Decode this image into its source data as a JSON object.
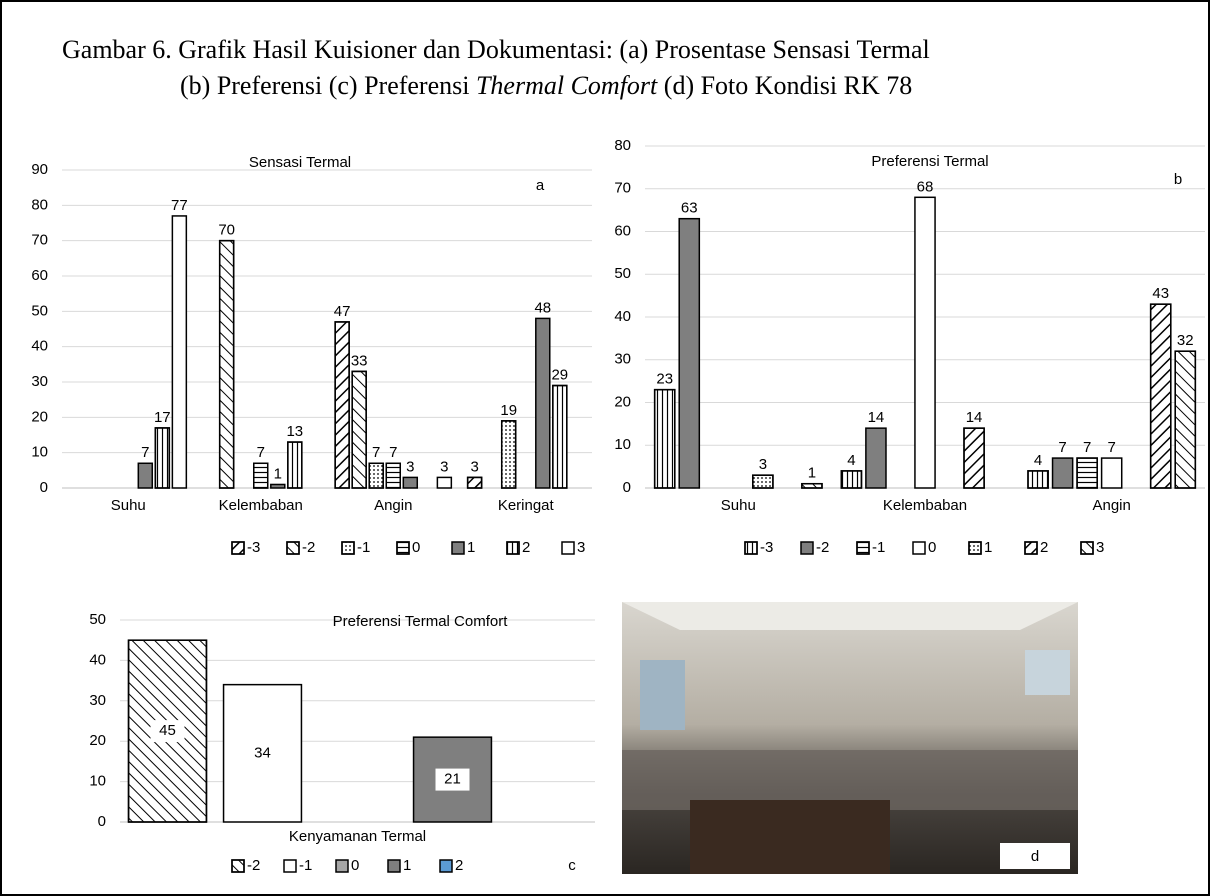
{
  "caption": {
    "line1": "Gambar 6. Grafik Hasil Kuisioner dan Dokumentasi: (a) Prosentase Sensasi Termal",
    "line2": [
      "(b) Preferensi (c) Preferensi ",
      "Thermal Comfort",
      " (d) Foto Kondisi RK 78"
    ]
  },
  "chart_data": [
    {
      "type": "bar",
      "title": "Sensasi Termal",
      "label": "a",
      "categories": [
        "Suhu",
        "Kelembaban",
        "Angin",
        "Keringat"
      ],
      "ylim": [
        0,
        90
      ],
      "yticks": [
        0,
        10,
        20,
        30,
        40,
        50,
        60,
        70,
        80,
        90
      ],
      "grid": true,
      "value_label_position": "above",
      "series": [
        {
          "name": "-3",
          "color": "#ffffff",
          "pattern": "diag-up",
          "values": [
            null,
            null,
            47,
            3
          ]
        },
        {
          "name": "-2",
          "color": "#ffffff",
          "pattern": "diag-down",
          "values": [
            null,
            70,
            33,
            null
          ]
        },
        {
          "name": "-1",
          "color": "#ffffff",
          "pattern": "dots",
          "values": [
            null,
            null,
            7,
            19
          ]
        },
        {
          "name": "0",
          "color": "#ffffff",
          "pattern": "hlines",
          "values": [
            null,
            7,
            7,
            null
          ]
        },
        {
          "name": "1",
          "color": "#7f7f7f",
          "pattern": null,
          "values": [
            7,
            1,
            3,
            48
          ]
        },
        {
          "name": "2",
          "color": "#ffffff",
          "pattern": "vlines",
          "values": [
            17,
            13,
            null,
            29
          ]
        },
        {
          "name": "3",
          "color": "#ffffff",
          "pattern": null,
          "values": [
            77,
            null,
            3,
            null
          ]
        }
      ]
    },
    {
      "type": "bar",
      "title": "Preferensi Termal",
      "label": "b",
      "categories": [
        "Suhu",
        "Kelembaban",
        "Angin"
      ],
      "ylim": [
        0,
        80
      ],
      "yticks": [
        0,
        10,
        20,
        30,
        40,
        50,
        60,
        70,
        80
      ],
      "grid": true,
      "value_label_position": "above",
      "series": [
        {
          "name": "-3",
          "color": "#ffffff",
          "pattern": "vlines",
          "values": [
            23,
            4,
            4
          ]
        },
        {
          "name": "-2",
          "color": "#7f7f7f",
          "pattern": null,
          "values": [
            63,
            14,
            7
          ]
        },
        {
          "name": "-1",
          "color": "#ffffff",
          "pattern": "hlines",
          "values": [
            null,
            null,
            7
          ]
        },
        {
          "name": "0",
          "color": "#ffffff",
          "pattern": null,
          "values": [
            null,
            68,
            7
          ]
        },
        {
          "name": "1",
          "color": "#ffffff",
          "pattern": "dots",
          "values": [
            3,
            null,
            null
          ]
        },
        {
          "name": "2",
          "color": "#ffffff",
          "pattern": "diag-up",
          "values": [
            null,
            14,
            43
          ]
        },
        {
          "name": "3",
          "color": "#ffffff",
          "pattern": "diag-down",
          "values": [
            1,
            null,
            32
          ]
        }
      ]
    },
    {
      "type": "bar",
      "title": "Preferensi Termal Comfort",
      "label": "c",
      "categories": [
        "Kenyamanan Termal"
      ],
      "ylim": [
        0,
        50
      ],
      "yticks": [
        0,
        10,
        20,
        30,
        40,
        50
      ],
      "grid": true,
      "value_label_position": "inside",
      "series": [
        {
          "name": "-2",
          "color": "#ffffff",
          "pattern": "diag-down",
          "values": [
            45
          ]
        },
        {
          "name": "-1",
          "color": "#ffffff",
          "pattern": null,
          "values": [
            34
          ]
        },
        {
          "name": "0",
          "color": "#a6a6a6",
          "pattern": null,
          "values": [
            null
          ]
        },
        {
          "name": "1",
          "color": "#7f7f7f",
          "pattern": null,
          "values": [
            21
          ]
        },
        {
          "name": "2",
          "color": "#5b9bd5",
          "pattern": null,
          "values": [
            null
          ]
        }
      ]
    }
  ],
  "photo": {
    "label": "d"
  }
}
